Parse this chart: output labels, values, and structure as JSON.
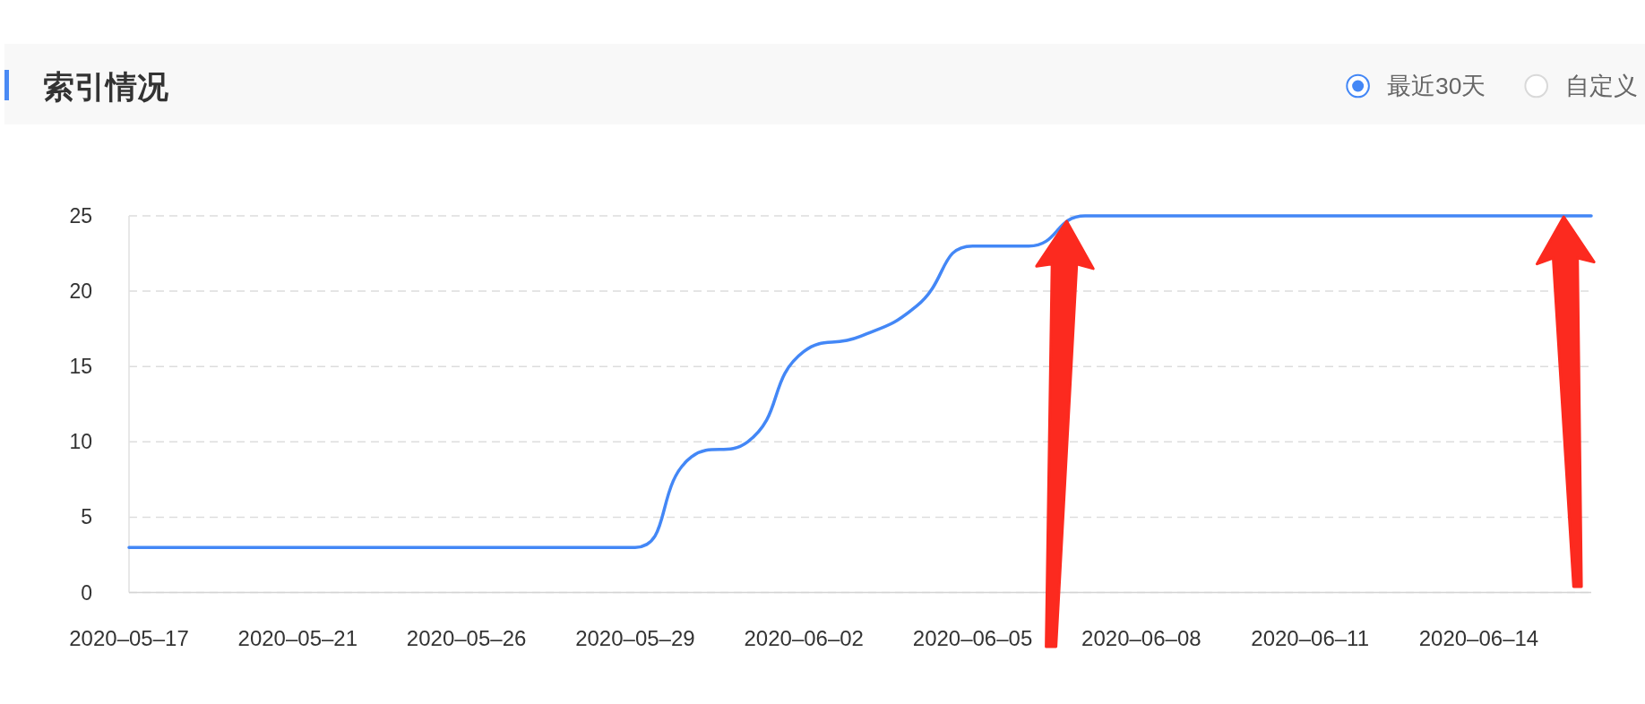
{
  "chart_data": {
    "type": "line",
    "title": "索引情况",
    "categories": [
      "2020–05–17",
      null,
      null,
      "2020–05–21",
      null,
      null,
      "2020–05–26",
      null,
      null,
      "2020–05–29",
      null,
      null,
      "2020–06–02",
      null,
      null,
      "2020–06–05",
      null,
      null,
      "2020–06–08",
      null,
      null,
      "2020–06–11",
      null,
      null,
      "2020–06–14",
      null,
      null
    ],
    "series": [
      {
        "color": "#4387f6",
        "values": [
          3,
          3,
          3,
          3,
          3,
          3,
          3,
          3,
          3,
          3,
          9,
          10,
          16,
          17,
          19,
          23,
          23,
          25,
          25,
          25,
          25,
          25,
          25,
          25,
          25,
          25,
          25
        ]
      }
    ],
    "ylim": [
      0,
      25
    ],
    "yticks": [
      0,
      5,
      10,
      15,
      20,
      25
    ],
    "grid": "y",
    "annotations": [
      "最近30天",
      "自定义"
    ]
  }
}
